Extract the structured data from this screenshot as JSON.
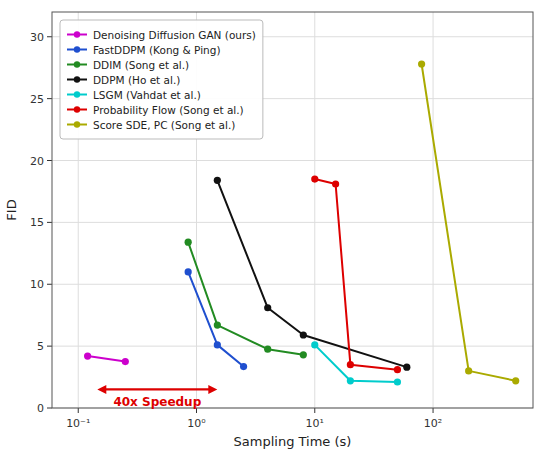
{
  "chart_data": {
    "type": "line",
    "x_label": "Sampling Time (s)",
    "y_label": "FID",
    "log": "x",
    "grid": true,
    "legend": "upper left",
    "marker": "circle",
    "xlim": [
      0.06,
      700
    ],
    "xticks": [
      {
        "value": 0.1,
        "label": "10⁻¹"
      },
      {
        "value": 1,
        "label": "10⁰"
      },
      {
        "value": 10,
        "label": "10¹"
      },
      {
        "value": 100,
        "label": "10²"
      }
    ],
    "ylim": [
      0,
      32
    ],
    "yticks": [
      0,
      5,
      10,
      15,
      20,
      25,
      30
    ],
    "series": [
      {
        "name": "Denoising Diffusion GAN (ours)",
        "color": "#cc00cc",
        "x": [
          0.12,
          0.25
        ],
        "values": [
          4.2,
          3.75
        ]
      },
      {
        "name": "FastDDPM (Kong & Ping)",
        "color": "#1f4fcf",
        "x": [
          0.85,
          1.5,
          2.5
        ],
        "values": [
          11.0,
          5.1,
          3.35
        ]
      },
      {
        "name": "DDIM (Song et al.)",
        "color": "#228B22",
        "x": [
          0.85,
          1.5,
          4.0,
          8.0
        ],
        "values": [
          13.4,
          6.7,
          4.75,
          4.3
        ]
      },
      {
        "name": "DDPM (Ho et al.)",
        "color": "#111111",
        "x": [
          1.5,
          4.0,
          8.0,
          60.0
        ],
        "values": [
          18.4,
          8.1,
          5.9,
          3.3
        ]
      },
      {
        "name": "LSGM (Vahdat et al.)",
        "color": "#00cccc",
        "x": [
          10.0,
          20.0,
          50.0
        ],
        "values": [
          5.1,
          2.2,
          2.1
        ]
      },
      {
        "name": "Probability Flow (Song et al.)",
        "color": "#dd0000",
        "x": [
          10.0,
          15.0,
          20.0,
          50.0
        ],
        "values": [
          18.5,
          18.1,
          3.5,
          3.1
        ]
      },
      {
        "name": "Score SDE, PC (Song et al.)",
        "color": "#aaaa00",
        "x": [
          80.0,
          200.0,
          500.0
        ],
        "values": [
          27.8,
          3.0,
          2.2
        ]
      }
    ],
    "annotations": [
      {
        "text": "40x Speedup",
        "x_start": 0.145,
        "x_end": 1.5,
        "y": 1.5,
        "y_text": 1.0,
        "color": "#dd0000"
      }
    ]
  }
}
